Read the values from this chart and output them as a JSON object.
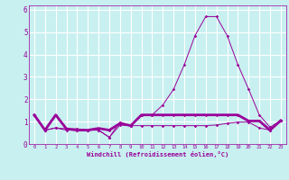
{
  "x_values": [
    0,
    1,
    2,
    3,
    4,
    5,
    6,
    7,
    8,
    9,
    10,
    11,
    12,
    13,
    14,
    15,
    16,
    17,
    18,
    19,
    20,
    21,
    22,
    23
  ],
  "series1": [
    1.3,
    0.62,
    0.72,
    0.68,
    0.68,
    0.62,
    0.62,
    0.3,
    0.85,
    0.82,
    0.82,
    0.82,
    0.82,
    0.82,
    0.82,
    0.82,
    0.82,
    0.85,
    0.92,
    0.98,
    0.98,
    0.72,
    0.62,
    1.05
  ],
  "series2": [
    1.3,
    0.62,
    1.3,
    0.68,
    0.62,
    0.62,
    0.7,
    0.62,
    0.92,
    0.82,
    1.3,
    1.3,
    1.3,
    1.3,
    1.3,
    1.3,
    1.3,
    1.3,
    1.3,
    1.3,
    1.03,
    1.03,
    0.62,
    1.05
  ],
  "series3": [
    1.3,
    0.62,
    0.72,
    0.62,
    0.62,
    0.62,
    0.62,
    0.3,
    0.98,
    0.82,
    1.3,
    1.3,
    1.75,
    2.45,
    3.55,
    4.85,
    5.7,
    5.7,
    4.85,
    3.55,
    2.45,
    1.3,
    0.75,
    1.05
  ],
  "xlabel": "Windchill (Refroidissement éolien,°C)",
  "ylim": [
    0,
    6.2
  ],
  "xlim": [
    -0.5,
    23.5
  ],
  "yticks": [
    0,
    1,
    2,
    3,
    4,
    5,
    6
  ],
  "xticks": [
    0,
    1,
    2,
    3,
    4,
    5,
    6,
    7,
    8,
    9,
    10,
    11,
    12,
    13,
    14,
    15,
    16,
    17,
    18,
    19,
    20,
    21,
    22,
    23
  ],
  "line_color": "#990099",
  "background_color": "#c8f0f0",
  "grid_color": "#ffffff",
  "marker": "D",
  "marker_size": 1.8,
  "lw_thin": 0.7,
  "lw_thick": 2.0
}
